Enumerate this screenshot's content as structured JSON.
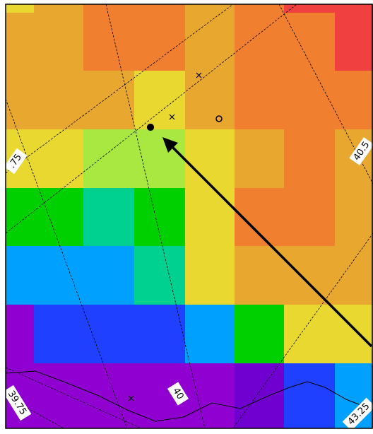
{
  "map": {
    "labels": [
      ".75",
      "40.5",
      "39.75",
      "40",
      "43.25"
    ]
  }
}
